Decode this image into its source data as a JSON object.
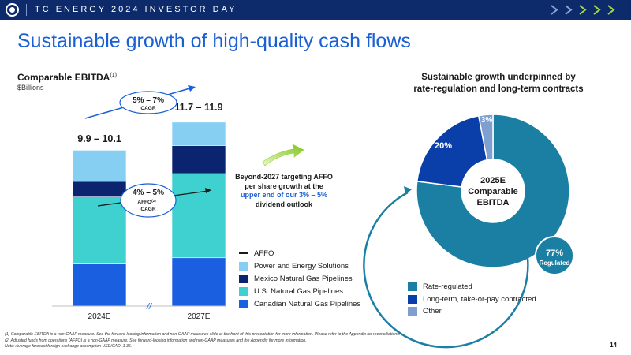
{
  "header": {
    "title": "TC ENERGY 2024 INVESTOR DAY",
    "logo_icon": "tc-energy-logo-icon",
    "chevrons_icon": "chevron-arrows-icon"
  },
  "slide": {
    "title": "Sustainable growth of high-quality cash flows",
    "page_number": "14"
  },
  "colors": {
    "power": "#86cff2",
    "mexico": "#0a2470",
    "us": "#3fd1cf",
    "canadian": "#1a5fe0",
    "rate_regulated": "#1a7fa3",
    "take_or_pay": "#0a3ea8",
    "other": "#7f9fd0"
  },
  "chart_data": [
    {
      "type": "bar",
      "stacked": true,
      "title": "Comparable EBITDA",
      "title_footnote": "(1)",
      "ylabel": "$Billions",
      "categories": [
        "2024E",
        "2027E"
      ],
      "axis_break": "//",
      "ylim": [
        0,
        12.5
      ],
      "totals": [
        "9.9 – 10.1",
        "11.7 – 11.9"
      ],
      "series": [
        {
          "name": "Canadian Natural Gas Pipelines",
          "values": [
            2.7,
            3.1
          ]
        },
        {
          "name": "U.S. Natural Gas Pipelines",
          "values": [
            4.3,
            5.4
          ]
        },
        {
          "name": "Mexico Natural Gas Pipelines",
          "values": [
            1.0,
            1.8
          ]
        },
        {
          "name": "Power and Energy Solutions",
          "values": [
            2.0,
            1.5
          ]
        }
      ],
      "legend_order": [
        "AFFO",
        "Power and Energy Solutions",
        "Mexico Natural Gas Pipelines",
        "U.S. Natural Gas Pipelines",
        "Canadian Natural Gas Pipelines"
      ],
      "legend_line_label": "AFFO",
      "annotations": {
        "ebitda_cagr_value": "5% – 7%",
        "ebitda_cagr_label": "CAGR",
        "affo_cagr_value": "4% – 5%",
        "affo_label": "AFFO",
        "affo_footnote": "(2)",
        "affo_cagr_label": "CAGR",
        "beyond_line1": "Beyond-2027 targeting AFFO",
        "beyond_line2": "per share growth at the",
        "beyond_line3_highlight": "upper end of our 3% – 5%",
        "beyond_line4": "dividend outlook"
      }
    },
    {
      "type": "pie",
      "donut": true,
      "title_line1": "Sustainable growth underpinned by",
      "title_line2": "rate-regulation and long-term contracts",
      "center_line1": "2025E",
      "center_line2": "Comparable",
      "center_line3": "EBITDA",
      "slices": [
        {
          "name": "Rate-regulated",
          "value": 77,
          "label": "77%",
          "sublabel": "Regulated"
        },
        {
          "name": "Long-term, take-or-pay contracted",
          "value": 20,
          "label": "20%"
        },
        {
          "name": "Other",
          "value": 3,
          "label": "3%"
        }
      ]
    }
  ],
  "footnotes": [
    "(1) Comparable EBITDA is a non-GAAP measure. See the forward-looking information and non-GAAP measures slide at the front of this presentation for more information. Please refer to the Appendix for reconciliations.",
    "(2) Adjusted funds from operations (AFFO) is a non-GAAP measure. See forward-looking information and non-GAAP measures and the Appendix for more information.",
    "Note: Average forecast foreign exchange assumption USD/CAD: 1.35."
  ]
}
